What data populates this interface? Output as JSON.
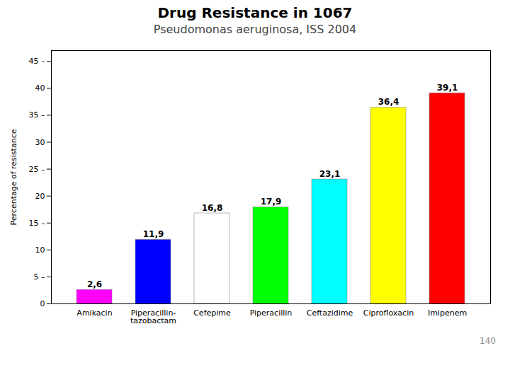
{
  "chart_data": {
    "type": "bar",
    "title": "Drug Resistance in 1067",
    "subtitle": "Pseudomonas aeruginosa,  ISS 2004",
    "categories": [
      "Amikacin",
      "Piperacillin-\ntazobactam",
      "Cefepime",
      "Piperacillin",
      "Ceftazidime",
      "Ciprofloxacin",
      "Imipenem"
    ],
    "values": [
      2.6,
      11.9,
      16.8,
      17.9,
      23.1,
      36.4,
      39.1
    ],
    "value_labels": [
      "2,6",
      "11,9",
      "16,8",
      "17,9",
      "23,1",
      "36,4",
      "39,1"
    ],
    "colors": [
      "#FF00FF",
      "#0000FF",
      "#FFFFFF",
      "#00FF00",
      "#00FFFF",
      "#FFFF00",
      "#FF0000"
    ],
    "ylabel": "Percentage of resistance",
    "ylim": [
      0,
      47
    ],
    "yticks": [
      0,
      {
        "value": 5,
        "label": "5 –"
      },
      10,
      {
        "value": 15,
        "label": "15 –"
      },
      20,
      {
        "value": 25,
        "label": "25 –"
      },
      30,
      {
        "value": 35,
        "label": "35 –"
      },
      40,
      {
        "value": 45,
        "label": "45 –"
      }
    ],
    "data_labels": true,
    "grid": false,
    "annotations": [
      "140"
    ]
  }
}
